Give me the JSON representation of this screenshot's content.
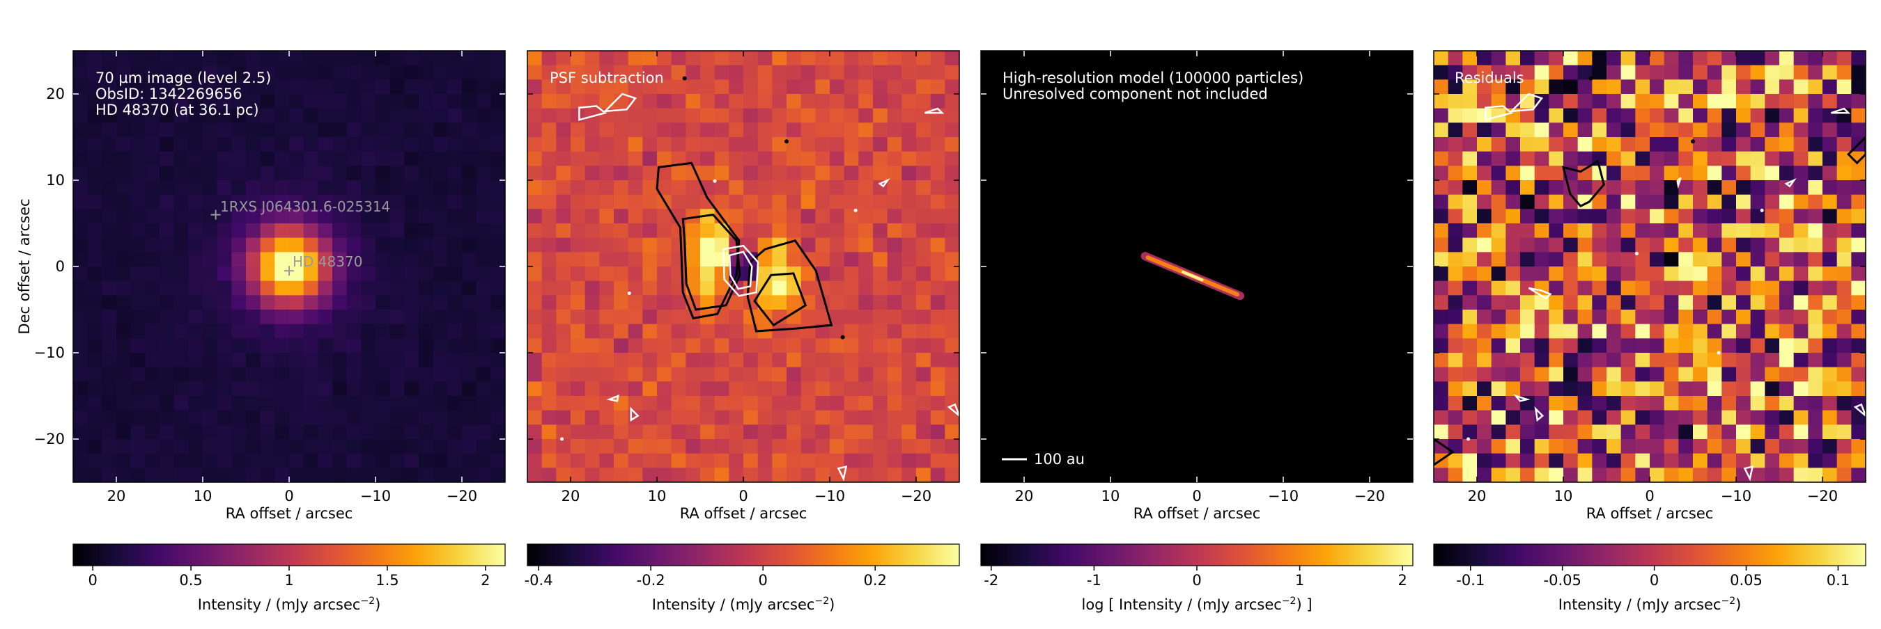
{
  "chart_data": [
    {
      "type": "heatmap",
      "panel": "image",
      "annotation_lines": [
        "70 µm image (level 2.5)",
        "ObsID: 1342269656",
        "HD 48370 (at 36.1 pc)"
      ],
      "xlabel": "RA offset / arcsec",
      "ylabel": "Dec offset / arcsec",
      "xlim": [
        25,
        -25
      ],
      "ylim": [
        -25,
        25
      ],
      "xticks": [
        20,
        10,
        0,
        -10,
        -20
      ],
      "yticks": [
        20,
        10,
        0,
        -10,
        -20
      ],
      "xtick_labels": [
        "20",
        "10",
        "0",
        "−10",
        "−20"
      ],
      "ytick_labels": [
        "20",
        "10",
        "0",
        "−10",
        "−20"
      ],
      "colormap": "inferno",
      "source_markers": [
        {
          "label": "1RXS J064301.6-025314",
          "x": 8.5,
          "y": 6
        },
        {
          "label": "HD 48370",
          "x": 0,
          "y": -0.5
        }
      ],
      "colorbar": {
        "range": [
          -0.1,
          2.1
        ],
        "ticks": [
          0,
          0.5,
          1,
          1.5,
          2
        ],
        "tick_labels": [
          "0",
          "0.5",
          "1",
          "1.5",
          "2"
        ],
        "label_main": "Intensity / (mJy arcsec",
        "label_sup": "−2",
        "label_end": ")"
      }
    },
    {
      "type": "heatmap",
      "panel": "psf",
      "annotation_lines": [
        "PSF subtraction"
      ],
      "xlabel": "RA offset / arcsec",
      "xlim": [
        25,
        -25
      ],
      "ylim": [
        -25,
        25
      ],
      "xticks": [
        20,
        10,
        0,
        -10,
        -20
      ],
      "xtick_labels": [
        "20",
        "10",
        "0",
        "−10",
        "−20"
      ],
      "colormap": "inferno",
      "colorbar": {
        "range": [
          -0.42,
          0.35
        ],
        "ticks": [
          -0.4,
          -0.2,
          0,
          0.2
        ],
        "tick_labels": [
          "-0.4",
          "-0.2",
          "0",
          "0.2"
        ],
        "label_main": "Intensity / (mJy arcsec",
        "label_sup": "−2",
        "label_end": ")"
      }
    },
    {
      "type": "heatmap",
      "panel": "model",
      "annotation_lines": [
        "High-resolution model (100000 particles)",
        "Unresolved component not included"
      ],
      "xlabel": "RA offset / arcsec",
      "xlim": [
        25,
        -25
      ],
      "ylim": [
        -25,
        25
      ],
      "xticks": [
        20,
        10,
        0,
        -10,
        -20
      ],
      "xtick_labels": [
        "20",
        "10",
        "0",
        "−10",
        "−20"
      ],
      "scalebar_label": "100 au",
      "colormap": "inferno",
      "colorbar": {
        "range": [
          -2.1,
          2.1
        ],
        "ticks": [
          -2,
          -1,
          0,
          1,
          2
        ],
        "tick_labels": [
          "-2",
          "-1",
          "0",
          "1",
          "2"
        ],
        "label_main": "log [ Intensity / (mJy arcsec",
        "label_sup": "−2",
        "label_end": ") ]"
      }
    },
    {
      "type": "heatmap",
      "panel": "residuals",
      "annotation_lines": [
        "Residuals"
      ],
      "xlabel": "RA offset / arcsec",
      "xlim": [
        25,
        -25
      ],
      "ylim": [
        -25,
        25
      ],
      "xticks": [
        20,
        10,
        0,
        -10,
        -20
      ],
      "xtick_labels": [
        "20",
        "10",
        "0",
        "−10",
        "−20"
      ],
      "colormap": "inferno",
      "colorbar": {
        "range": [
          -0.12,
          0.115
        ],
        "ticks": [
          -0.1,
          -0.05,
          0,
          0.05,
          0.1
        ],
        "tick_labels": [
          "-0.1",
          "-0.05",
          "0",
          "0.05",
          "0.1"
        ],
        "label_main": "Intensity / (mJy arcsec",
        "label_sup": "−2",
        "label_end": ")"
      }
    }
  ]
}
